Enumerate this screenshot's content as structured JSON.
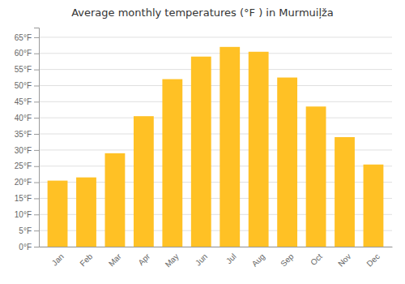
{
  "chart_data": {
    "type": "bar",
    "title": "Average monthly temperatures (°F ) in Murmuiļža",
    "categories": [
      "Jan",
      "Feb",
      "Mar",
      "Apr",
      "May",
      "Jun",
      "Jul",
      "Aug",
      "Sep",
      "Oct",
      "Nov",
      "Dec"
    ],
    "values": [
      20.5,
      21.5,
      29.0,
      40.5,
      52.0,
      59.0,
      62.0,
      60.5,
      52.5,
      43.5,
      34.0,
      25.5
    ],
    "color": "#FFC125",
    "ylim": [
      0,
      68
    ],
    "yticks": [
      {
        "value": 0,
        "label": "0°F"
      },
      {
        "value": 5,
        "label": "5°F"
      },
      {
        "value": 10,
        "label": "10°F"
      },
      {
        "value": 15,
        "label": "15°F"
      },
      {
        "value": 20,
        "label": "20°F"
      },
      {
        "value": 25,
        "label": "25°F"
      },
      {
        "value": 30,
        "label": "30°F"
      },
      {
        "value": 35,
        "label": "35°F"
      },
      {
        "value": 40,
        "label": "40°F"
      },
      {
        "value": 45,
        "label": "45°F"
      },
      {
        "value": 50,
        "label": "50°F"
      },
      {
        "value": 55,
        "label": "55°F"
      },
      {
        "value": 60,
        "label": "60°F"
      },
      {
        "value": 65,
        "label": "65°F"
      }
    ],
    "grid": true
  }
}
